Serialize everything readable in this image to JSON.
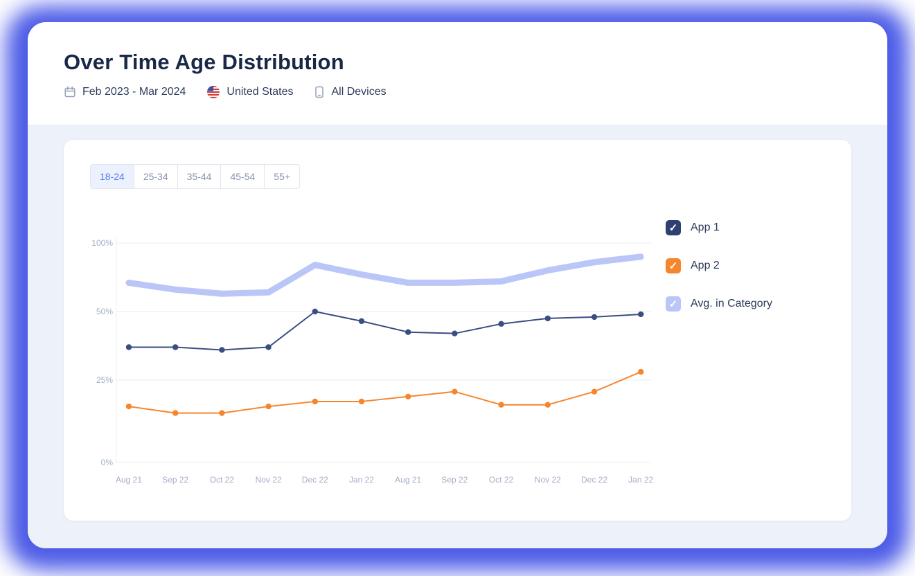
{
  "page": {
    "title": "Over Time Age Distribution",
    "meta": {
      "date_range": "Feb 2023 - Mar 2024",
      "country": "United States",
      "devices": "All Devices"
    }
  },
  "tabs": [
    {
      "label": "18-24",
      "selected": true
    },
    {
      "label": "25-34",
      "selected": false
    },
    {
      "label": "35-44",
      "selected": false
    },
    {
      "label": "45-54",
      "selected": false
    },
    {
      "label": "55+",
      "selected": false
    }
  ],
  "legend": [
    {
      "label": "App 1",
      "color": "#2d4170",
      "checked": true
    },
    {
      "label": "App 2",
      "color": "#f6862e",
      "checked": true
    },
    {
      "label": "Avg. in Category",
      "color": "#bac6f8",
      "checked": true
    }
  ],
  "colors": {
    "glow": "#4c5be6",
    "section_bg": "#edf1f9",
    "grid": "#eaedf4",
    "axis_text": "#a3aec6",
    "tab_selected_text": "#4c7cf5",
    "tab_selected_bg": "#ecf2fd"
  },
  "chart_data": {
    "type": "line",
    "title": "Over Time Age Distribution - 18-24",
    "x": [
      "Aug 21",
      "Sep 22",
      "Oct 22",
      "Nov 22",
      "Dec 22",
      "Jan 22",
      "Aug 21",
      "Sep 22",
      "Oct 22",
      "Nov 22",
      "Dec 22",
      "Jan 22"
    ],
    "xlabel": "",
    "ylabel": "",
    "ylim": [
      0,
      100
    ],
    "yticks": [
      {
        "label": "0%",
        "value": 0
      },
      {
        "label": "25%",
        "value": 25
      },
      {
        "label": "50%",
        "value": 50
      },
      {
        "label": "100%",
        "value": 100
      }
    ],
    "grid": true,
    "legend_position": "right",
    "series": [
      {
        "name": "App 1",
        "color": "#3a4e82",
        "width": 2,
        "dots": true,
        "values": [
          37,
          37,
          36,
          37,
          50,
          46.5,
          42.5,
          42,
          45.5,
          47.5,
          48,
          49
        ]
      },
      {
        "name": "App 2",
        "color": "#f6862e",
        "width": 2,
        "dots": true,
        "values": [
          17,
          15,
          15,
          17,
          18.5,
          18.5,
          20,
          21.5,
          17.5,
          17.5,
          21.5,
          28
        ]
      },
      {
        "name": "Avg. in Category",
        "color": "#bac6f8",
        "width": 9,
        "dots": false,
        "values": [
          71,
          66,
          63,
          64,
          84,
          77,
          71,
          71,
          72,
          80,
          86,
          90
        ]
      }
    ]
  }
}
